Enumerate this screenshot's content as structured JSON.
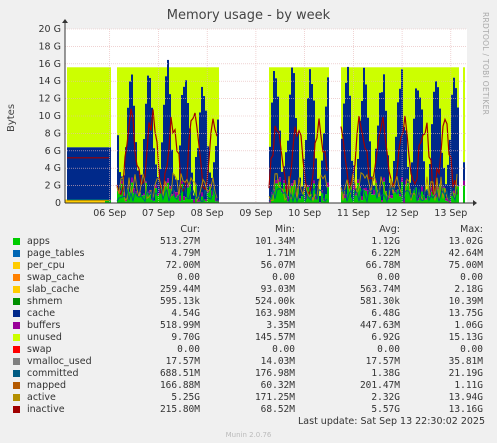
{
  "chart_data": {
    "type": "area",
    "title": "Memory usage - by week",
    "ylabel": "Bytes",
    "ylim": [
      0,
      20
    ],
    "y_unit": "G",
    "yticks": [
      "0",
      "2 G",
      "4 G",
      "6 G",
      "8 G",
      "10 G",
      "12 G",
      "14 G",
      "16 G",
      "18 G",
      "20 G"
    ],
    "xticks": [
      "06 Sep",
      "07 Sep",
      "08 Sep",
      "09 Sep",
      "10 Sep",
      "11 Sep",
      "12 Sep",
      "13 Sep"
    ],
    "grid": true,
    "side_label": "RRDTOOL / TOBI OETIKER",
    "legend_headers": {
      "cur": "Cur:",
      "min": "Min:",
      "avg": "Avg:",
      "max": "Max:"
    },
    "series": [
      {
        "name": "apps",
        "color": "#00cc00",
        "cur": "513.27M",
        "min": "101.34M",
        "avg": "1.12G",
        "max": "13.02G"
      },
      {
        "name": "page_tables",
        "color": "#0066b3",
        "cur": "4.79M",
        "min": "1.71M",
        "avg": "6.22M",
        "max": "42.64M"
      },
      {
        "name": "per_cpu",
        "color": "#ffcc00",
        "cur": "72.00M",
        "min": "56.07M",
        "avg": "66.78M",
        "max": "75.00M"
      },
      {
        "name": "swap_cache",
        "color": "#ff8000",
        "cur": "0.00",
        "min": "0.00",
        "avg": "0.00",
        "max": "0.00"
      },
      {
        "name": "slab_cache",
        "color": "#ffcc00",
        "cur": "259.44M",
        "min": "93.03M",
        "avg": "563.74M",
        "max": "2.18G"
      },
      {
        "name": "shmem",
        "color": "#008f00",
        "cur": "595.13k",
        "min": "524.00k",
        "avg": "581.30k",
        "max": "10.39M"
      },
      {
        "name": "cache",
        "color": "#00298a",
        "cur": "4.54G",
        "min": "163.98M",
        "avg": "6.48G",
        "max": "13.75G"
      },
      {
        "name": "buffers",
        "color": "#990099",
        "cur": "518.99M",
        "min": "3.35M",
        "avg": "447.63M",
        "max": "1.06G"
      },
      {
        "name": "unused",
        "color": "#ccff00",
        "cur": "9.70G",
        "min": "145.57M",
        "avg": "6.92G",
        "max": "15.13G"
      },
      {
        "name": "swap",
        "color": "#ff0000",
        "cur": "0.00",
        "min": "0.00",
        "avg": "0.00",
        "max": "0.00"
      },
      {
        "name": "vmalloc_used",
        "color": "#808080",
        "cur": "17.57M",
        "min": "14.03M",
        "avg": "17.57M",
        "max": "35.81M"
      },
      {
        "name": "committed",
        "color": "#005b82",
        "cur": "688.51M",
        "min": "176.98M",
        "avg": "1.38G",
        "max": "21.19G"
      },
      {
        "name": "mapped",
        "color": "#b35900",
        "cur": "166.88M",
        "min": "60.32M",
        "avg": "201.47M",
        "max": "1.11G"
      },
      {
        "name": "active",
        "color": "#b38f00",
        "cur": "5.25G",
        "min": "171.25M",
        "avg": "2.32G",
        "max": "13.94G"
      },
      {
        "name": "inactive",
        "color": "#a00000",
        "cur": "215.80M",
        "min": "68.52M",
        "avg": "5.57G",
        "max": "13.16G"
      }
    ]
  },
  "last_update": "Last update:  Sat Sep 13 22:30:02 2025",
  "footer": "Munin 2.0.76"
}
